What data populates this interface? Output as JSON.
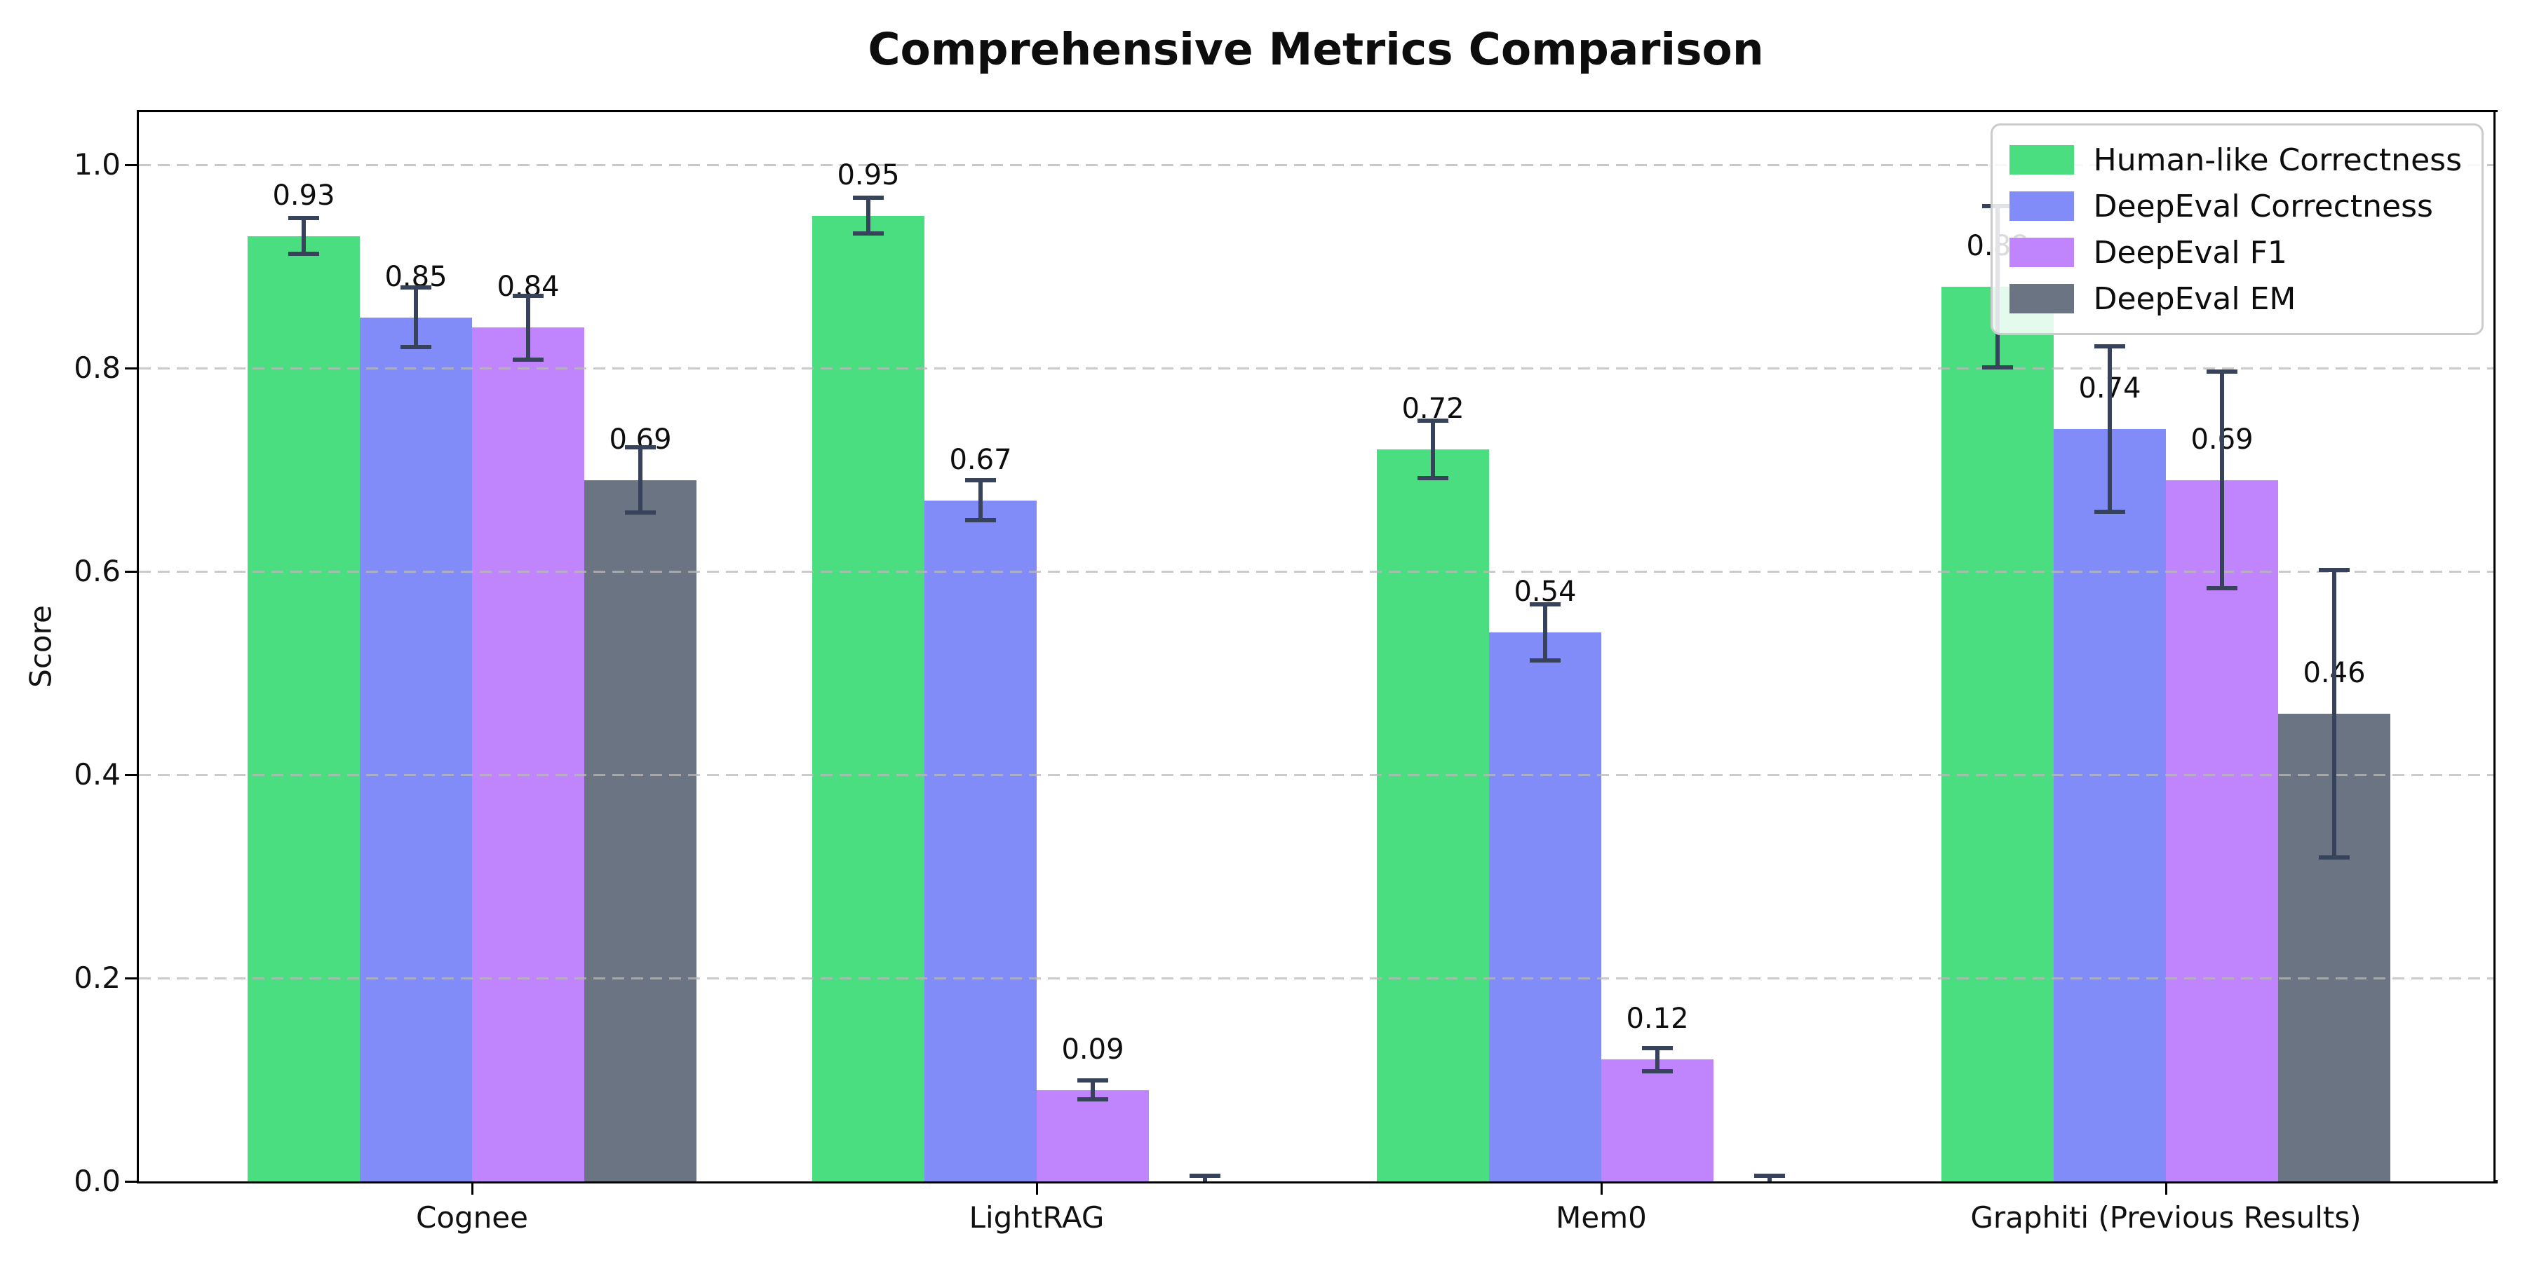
{
  "chart_data": {
    "type": "bar",
    "title": "Comprehensive Metrics Comparison",
    "ylabel": "Score",
    "categories": [
      "Cognee",
      "LightRAG",
      "Mem0",
      "Graphiti (Previous Results)"
    ],
    "series": [
      {
        "name": "Human-like Correctness",
        "color": "#4ade80",
        "values": [
          0.93,
          0.95,
          0.72,
          0.88
        ],
        "errors": [
          0.016,
          0.016,
          0.027,
          0.078
        ],
        "labels": [
          "0.93",
          "0.95",
          "0.72",
          "0.88"
        ]
      },
      {
        "name": "DeepEval Correctness",
        "color": "#818cf8",
        "values": [
          0.85,
          0.67,
          0.54,
          0.74
        ],
        "errors": [
          0.028,
          0.018,
          0.026,
          0.08
        ],
        "labels": [
          "0.85",
          "0.67",
          "0.54",
          "0.74"
        ]
      },
      {
        "name": "DeepEval F1",
        "color": "#c084fc",
        "values": [
          0.84,
          0.09,
          0.12,
          0.69
        ],
        "errors": [
          0.03,
          0.008,
          0.01,
          0.105
        ],
        "labels": [
          "0.84",
          "0.09",
          "0.12",
          "0.69"
        ]
      },
      {
        "name": "DeepEval EM",
        "color": "#6b7482",
        "values": [
          0.69,
          0.0,
          0.0,
          0.46
        ],
        "errors": [
          0.031,
          0.004,
          0.004,
          0.14
        ],
        "labels": [
          "0.69",
          "",
          "",
          "0.46"
        ]
      }
    ],
    "yticks": [
      "0.0",
      "0.2",
      "0.4",
      "0.6",
      "0.8",
      "1.0"
    ],
    "ylim": [
      0,
      1.05
    ],
    "grid": "horizontal-dashed",
    "legend_position": "upper-right",
    "errorbar_color": "#36435a",
    "grid_color": "#b9b9b9",
    "axis_color": "#000000",
    "background": "#ffffff"
  }
}
